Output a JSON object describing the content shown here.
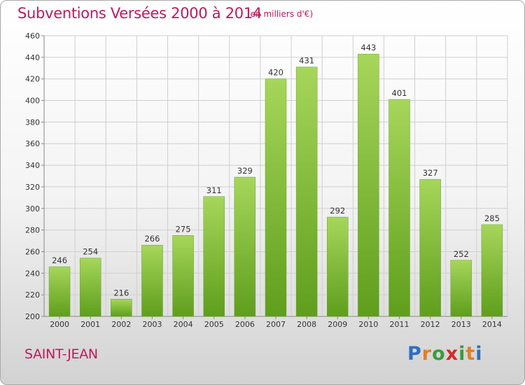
{
  "header": {
    "title": "Subventions Versées 2000 à 2014",
    "subtitle": "(en milliers d'€)"
  },
  "footer": {
    "city": "SAINT-JEAN",
    "logo": "Proxiti",
    "logo_colors": [
      "#2f6fbf",
      "#e67e22",
      "#3c9a3c",
      "#d62828",
      "#3c9a3c",
      "#e67e22"
    ]
  },
  "colors": {
    "title": "#c2185b",
    "bar_top": "#a6d65a",
    "bar_bottom": "#5f9e1c",
    "grid": "#cfcfcf"
  },
  "chart_data": {
    "type": "bar",
    "title": "Subventions Versées 2000 à 2014",
    "subtitle": "(en milliers d'€)",
    "xlabel": "",
    "ylabel": "",
    "categories": [
      "2000",
      "2001",
      "2002",
      "2003",
      "2004",
      "2005",
      "2006",
      "2007",
      "2008",
      "2009",
      "2010",
      "2011",
      "2012",
      "2013",
      "2014"
    ],
    "values": [
      246,
      254,
      216,
      266,
      275,
      311,
      329,
      420,
      431,
      292,
      443,
      401,
      327,
      252,
      285
    ],
    "ylim": [
      200,
      460
    ],
    "yticks": [
      200,
      220,
      240,
      260,
      280,
      300,
      320,
      340,
      360,
      380,
      400,
      420,
      440,
      460
    ],
    "grid": true,
    "data_labels": true
  }
}
